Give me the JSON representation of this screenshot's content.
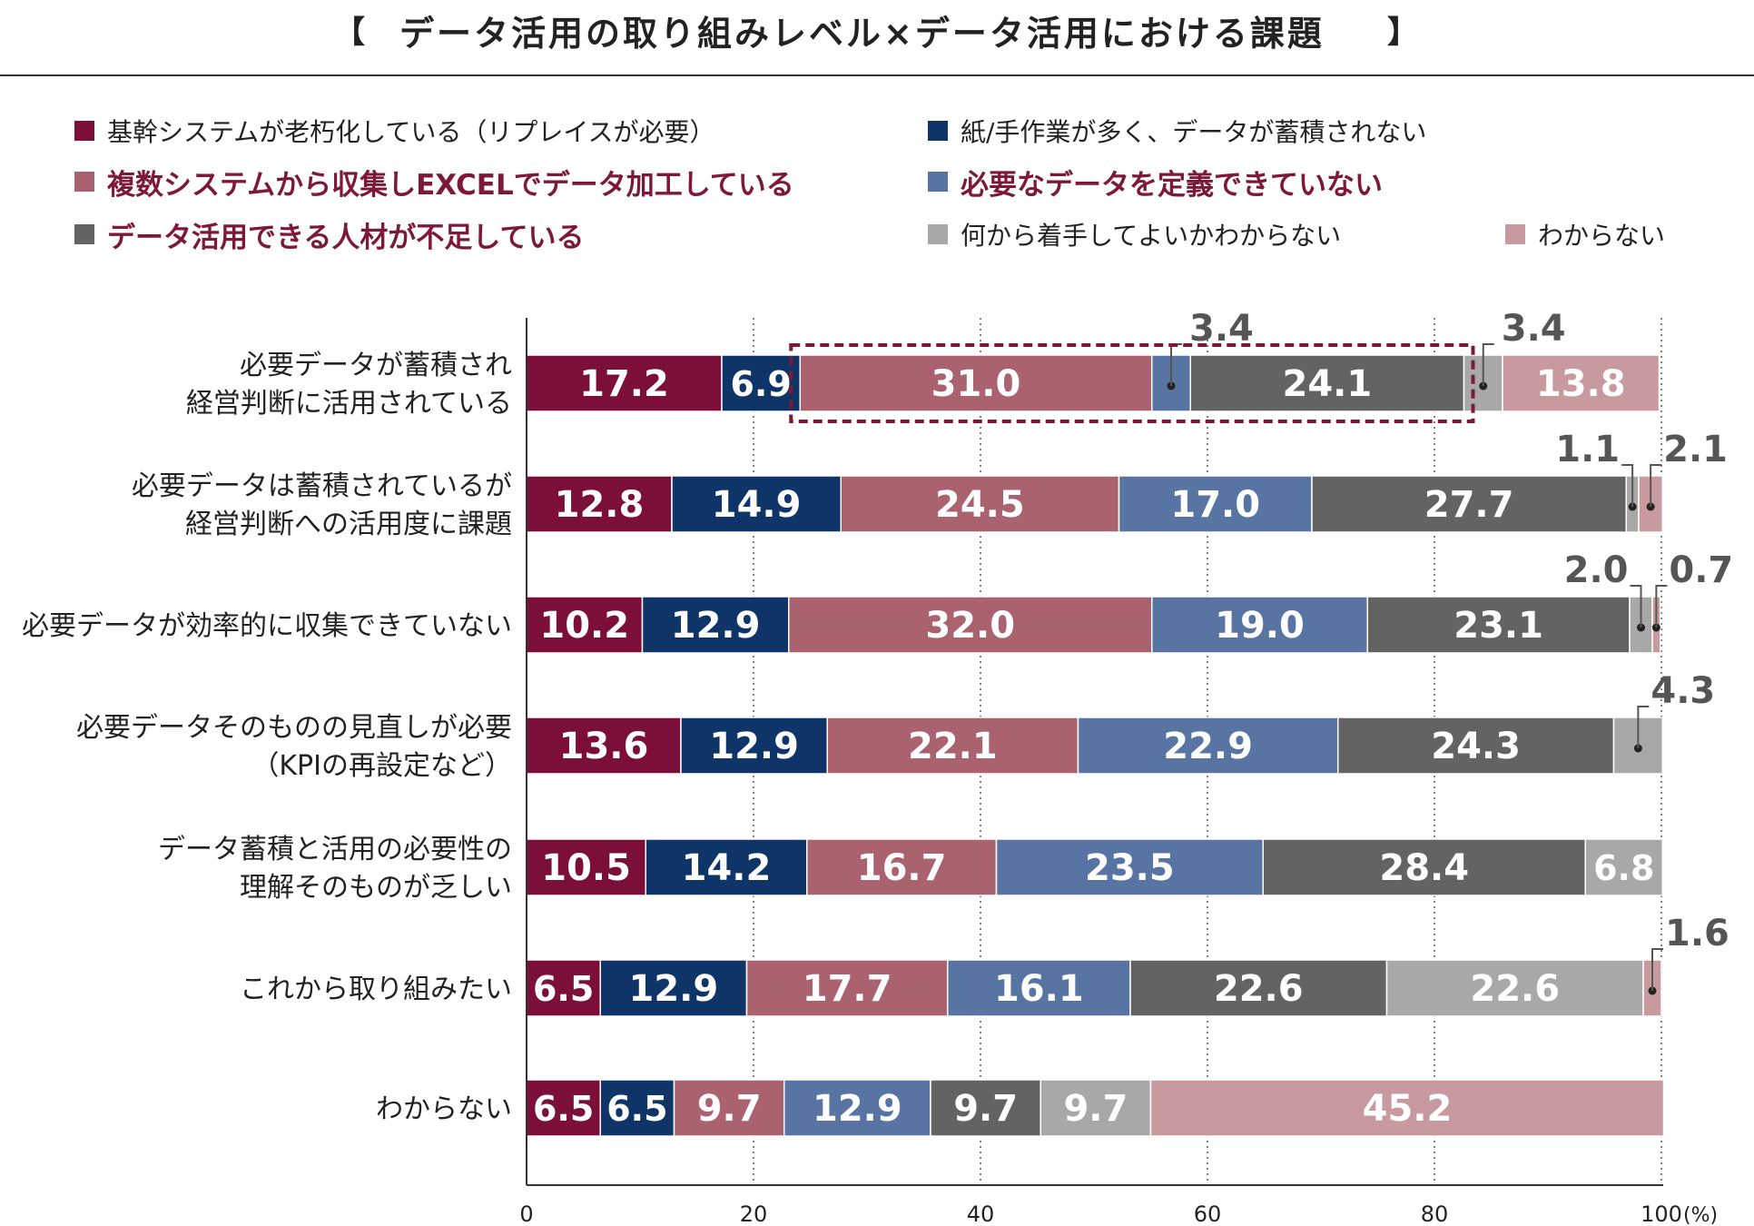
{
  "title": {
    "open_bracket": "【",
    "text": "データ活用の取り組みレベル×データ活用における課題",
    "close_bracket": "】"
  },
  "legend": [
    {
      "label": "基幹システムが老朽化している（リプレイスが必要）",
      "color": "#7b0f3a",
      "emphasis": false
    },
    {
      "label": "紙/手作業が多く、データが蓄積されない",
      "color": "#0f3468",
      "emphasis": false
    },
    {
      "label": "複数システムから収集しEXCELでデータ加工している",
      "color": "#ab626f",
      "emphasis": true
    },
    {
      "label": "必要なデータを定義できていない",
      "color": "#5874a3",
      "emphasis": true
    },
    {
      "label": "データ活用できる人材が不足している",
      "color": "#636363",
      "emphasis": true
    },
    {
      "label": "何から着手してよいかわからない",
      "color": "#a8a8a8",
      "emphasis": false
    },
    {
      "label": "わからない",
      "color": "#c89aa0",
      "emphasis": false
    }
  ],
  "chart_data": {
    "type": "bar",
    "orientation": "horizontal-stacked-100",
    "categories": [
      "必要データが蓄積され\n経営判断に活用されている",
      "必要データは蓄積されているが\n経営判断への活用度に課題",
      "必要データが効率的に収集できていない",
      "必要データそのものの見直しが必要\n（KPIの再設定など）",
      "データ蓄積と活用の必要性の\n理解そのものが乏しい",
      "これから取り組みたい",
      "わからない"
    ],
    "series": [
      {
        "name": "基幹システムが老朽化している（リプレイスが必要）",
        "color": "#7b0f3a",
        "values": [
          17.2,
          12.8,
          10.2,
          13.6,
          10.5,
          6.5,
          6.5
        ]
      },
      {
        "name": "紙/手作業が多く、データが蓄積されない",
        "color": "#0f3468",
        "values": [
          6.9,
          14.9,
          12.9,
          12.9,
          14.2,
          12.9,
          6.5
        ]
      },
      {
        "name": "複数システムから収集しEXCELでデータ加工している",
        "color": "#ab626f",
        "values": [
          31.0,
          24.5,
          32.0,
          22.1,
          16.7,
          17.7,
          9.7
        ]
      },
      {
        "name": "必要なデータを定義できていない",
        "color": "#5874a3",
        "values": [
          3.4,
          17.0,
          19.0,
          22.9,
          23.5,
          16.1,
          12.9
        ]
      },
      {
        "name": "データ活用できる人材が不足している",
        "color": "#636363",
        "values": [
          24.1,
          27.7,
          23.1,
          24.3,
          28.4,
          22.6,
          9.7
        ]
      },
      {
        "name": "何から着手してよいかわからない",
        "color": "#a8a8a8",
        "values": [
          3.4,
          1.1,
          2.0,
          4.3,
          6.8,
          22.6,
          9.7
        ]
      },
      {
        "name": "わからない",
        "color": "#c89aa0",
        "values": [
          13.8,
          2.1,
          0.7,
          0,
          0,
          1.6,
          45.2
        ]
      }
    ],
    "data_labels": [
      [
        "17.2",
        "6.9",
        "31.0",
        "3.4",
        "24.1",
        "3.4",
        "13.8"
      ],
      [
        "12.8",
        "14.9",
        "24.5",
        "17.0",
        "27.7",
        "1.1",
        "2.1"
      ],
      [
        "10.2",
        "12.9",
        "32.0",
        "19.0",
        "23.1",
        "2.0",
        "0.7"
      ],
      [
        "13.6",
        "12.9",
        "22.1",
        "22.9",
        "24.3",
        "4.3",
        ""
      ],
      [
        "10.5",
        "14.2",
        "16.7",
        "23.5",
        "28.4",
        "6.8",
        ""
      ],
      [
        "6.5",
        "12.9",
        "17.7",
        "16.1",
        "22.6",
        "22.6",
        "1.6"
      ],
      [
        "6.5",
        "6.5",
        "9.7",
        "12.9",
        "9.7",
        "9.7",
        "45.2"
      ]
    ],
    "xlim": [
      0,
      100
    ],
    "xticks": [
      "0",
      "20",
      "40",
      "60",
      "80",
      "100"
    ],
    "unit": "(%)",
    "grid": "dotted-vertical",
    "highlight": {
      "row": 0,
      "from_series": 2,
      "to_series": 4
    }
  }
}
